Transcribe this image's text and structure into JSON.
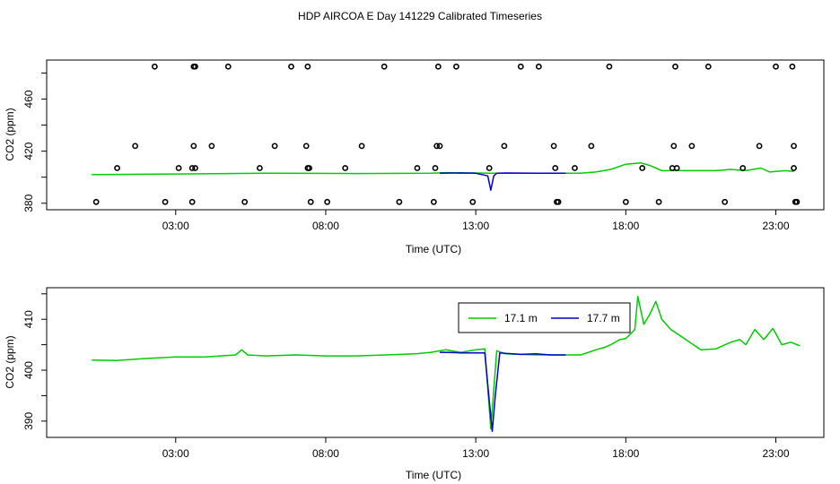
{
  "title": "HDP AIRCOA E  Day 141229  Calibrated Timeseries",
  "chart_data": [
    {
      "type": "line",
      "panel": "top",
      "xlabel": "Time (UTC)",
      "ylabel": "CO2 (ppm)",
      "x_ticks": [
        3,
        8,
        13,
        18,
        23
      ],
      "x_tick_labels": [
        "03:00",
        "08:00",
        "13:00",
        "18:00",
        "23:00"
      ],
      "y_ticks": [
        380,
        420,
        460
      ],
      "y_tick_labels": [
        "380",
        "420",
        "460"
      ],
      "xlim": [
        -1.3,
        24.6
      ],
      "ylim": [
        375,
        490
      ],
      "series": [
        {
          "name": "17.1 m",
          "color": "#00cc00",
          "x": [
            0.2,
            3,
            6,
            9,
            11.5,
            12,
            13,
            13.5,
            14,
            15,
            16.5,
            17,
            17.5,
            18,
            18.5,
            18.8,
            19.2,
            20,
            21,
            21.5,
            22,
            22.5,
            22.8,
            23.3,
            23.6
          ],
          "y": [
            402,
            402.5,
            403,
            402.8,
            403,
            403.5,
            403.2,
            403,
            403,
            403,
            403,
            404,
            406,
            410,
            411,
            409,
            405,
            405,
            405,
            406,
            405,
            407,
            404,
            405,
            404.5
          ]
        },
        {
          "name": "17.7 m",
          "color": "#0000cc",
          "x": [
            11.8,
            12.5,
            13,
            13.4,
            13.5,
            13.6,
            13.7,
            14,
            15,
            16
          ],
          "y": [
            403,
            403.2,
            403,
            401,
            390,
            401,
            403,
            403.2,
            403,
            403
          ]
        }
      ],
      "points": {
        "name": "calibration",
        "x": [
          0.35,
          1.05,
          1.65,
          2.3,
          2.65,
          3.1,
          3.55,
          3.55,
          3.6,
          3.6,
          3.65,
          3.65,
          4.2,
          4.75,
          5.3,
          5.8,
          6.3,
          6.85,
          7.35,
          7.4,
          7.4,
          7.45,
          7.5,
          8.05,
          8.65,
          9.2,
          9.95,
          10.45,
          11.05,
          11.6,
          11.65,
          11.7,
          11.75,
          11.8,
          12.35,
          12.9,
          13.45,
          13.95,
          14.5,
          15.1,
          15.6,
          15.65,
          15.7,
          15.75,
          16.3,
          16.85,
          17.45,
          18.0,
          18.55,
          19.1,
          19.55,
          19.6,
          19.65,
          19.7,
          20.2,
          20.75,
          21.3,
          21.9,
          22.45,
          23.0,
          23.55,
          23.6,
          23.6,
          23.65,
          23.7
        ],
        "y": [
          381,
          407,
          424,
          485,
          381,
          407,
          381,
          407,
          424,
          485,
          407,
          485,
          424,
          485,
          381,
          407,
          424,
          485,
          424,
          485,
          407,
          407,
          381,
          381,
          407,
          424,
          485,
          381,
          407,
          381,
          407,
          424,
          485,
          424,
          485,
          381,
          407,
          424,
          485,
          485,
          424,
          407,
          381,
          381,
          407,
          424,
          485,
          381,
          407,
          381,
          407,
          424,
          485,
          407,
          424,
          485,
          381,
          407,
          424,
          485,
          485,
          424,
          407,
          381,
          381
        ]
      }
    },
    {
      "type": "line",
      "panel": "bottom",
      "xlabel": "Time (UTC)",
      "ylabel": "CO2 (ppm)",
      "x_ticks": [
        3,
        8,
        13,
        18,
        23
      ],
      "x_tick_labels": [
        "03:00",
        "08:00",
        "13:00",
        "18:00",
        "23:00"
      ],
      "y_ticks": [
        390,
        400,
        410
      ],
      "y_tick_labels": [
        "390",
        "400",
        "410"
      ],
      "xlim": [
        -1.3,
        24.6
      ],
      "ylim": [
        386.8,
        416.2
      ],
      "legend": {
        "entries": [
          "17.1 m",
          "17.7 m"
        ],
        "position": "top-center"
      },
      "series": [
        {
          "name": "17.1 m",
          "color": "#00cc00",
          "x": [
            0.2,
            1,
            2,
            3,
            4,
            5,
            5.2,
            5.4,
            6,
            7,
            8,
            9,
            10,
            11,
            11.5,
            12,
            12.5,
            13,
            13.3,
            13.5,
            13.7,
            14,
            15,
            16,
            16.5,
            17,
            17.3,
            17.5,
            17.8,
            18,
            18.3,
            18.4,
            18.6,
            18.8,
            19.0,
            19.2,
            19.5,
            20,
            20.5,
            21,
            21.5,
            21.8,
            22,
            22.3,
            22.6,
            22.9,
            23.2,
            23.5,
            23.8
          ],
          "y": [
            402,
            401.9,
            402.3,
            402.6,
            402.6,
            403,
            404,
            403,
            402.8,
            403,
            402.8,
            402.8,
            403,
            403.2,
            403.5,
            404,
            403.5,
            404,
            404.2,
            388.5,
            403.8,
            403.2,
            403,
            403,
            403,
            404,
            404.5,
            405,
            406,
            406.2,
            408,
            414.5,
            409,
            411,
            413.5,
            410,
            408,
            406,
            404,
            404.2,
            405.5,
            406,
            405,
            408,
            406,
            408.2,
            405,
            405.5,
            404.8
          ]
        },
        {
          "name": "17.7 m",
          "color": "#0000cc",
          "x": [
            11.8,
            12,
            12.5,
            13,
            13.3,
            13.45,
            13.55,
            13.65,
            13.8,
            14,
            14.5,
            15,
            15.5,
            16
          ],
          "y": [
            403.5,
            403.5,
            403.4,
            403.4,
            403.4,
            394,
            388,
            395,
            403.4,
            403.3,
            403.1,
            403.2,
            403,
            403
          ]
        }
      ]
    }
  ]
}
